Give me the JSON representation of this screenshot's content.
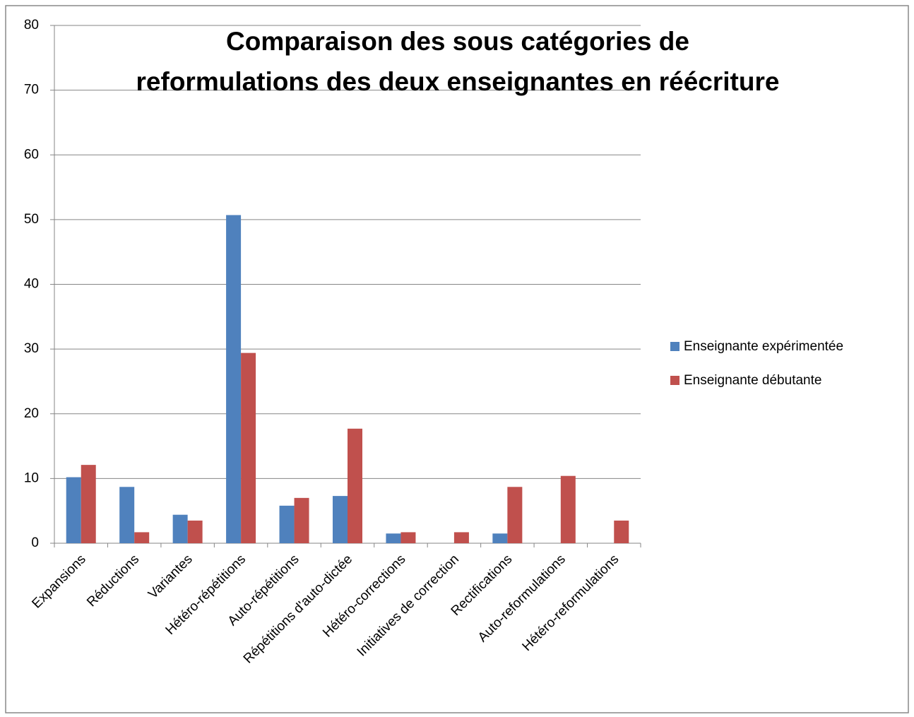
{
  "chart_data": {
    "type": "bar",
    "title": "Comparaison des sous catégories de reformulations des deux enseignantes en réécriture",
    "categories": [
      "Expansions",
      "Réductions",
      "Variantes",
      "Hétéro-répétitions",
      "Auto-répétitions",
      "Répétitions d'auto-dictée",
      "Hétéro-corrections",
      "Initiatives de correction",
      "Rectifications",
      "Auto-reformulations",
      "Hétéro-reformulations"
    ],
    "series": [
      {
        "name": "Enseignante expérimentée",
        "color": "#4f81bd",
        "values": [
          10.2,
          8.7,
          4.4,
          50.7,
          5.8,
          7.3,
          1.5,
          0,
          1.5,
          0,
          0
        ]
      },
      {
        "name": "Enseignante débutante",
        "color": "#c0504d",
        "values": [
          12.1,
          1.7,
          3.5,
          29.4,
          7.0,
          17.7,
          1.7,
          1.7,
          8.7,
          10.4,
          3.5
        ]
      }
    ],
    "ylim": [
      0,
      80
    ],
    "yticks": [
      0,
      10,
      20,
      30,
      40,
      50,
      60,
      70,
      80
    ],
    "grid": true,
    "legend": "right"
  }
}
